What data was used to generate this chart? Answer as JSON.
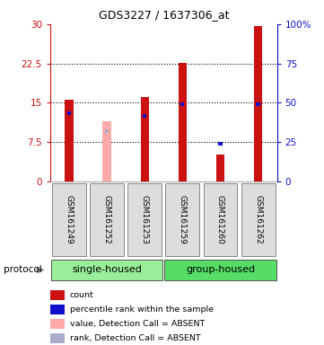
{
  "title": "GDS3227 / 1637306_at",
  "samples": [
    "GSM161249",
    "GSM161252",
    "GSM161253",
    "GSM161259",
    "GSM161260",
    "GSM161262"
  ],
  "red_values": [
    15.6,
    0,
    16.0,
    22.6,
    5.0,
    29.7
  ],
  "blue_values": [
    13.0,
    0,
    12.5,
    14.7,
    7.2,
    14.7
  ],
  "pink_bar_values": [
    0,
    11.5,
    0,
    0,
    0,
    0
  ],
  "light_blue_values": [
    0,
    9.5,
    0,
    0,
    0,
    0
  ],
  "absent_samples": [
    1
  ],
  "ylim_left": [
    0,
    30
  ],
  "ylim_right": [
    0,
    100
  ],
  "yticks_left": [
    0,
    7.5,
    15,
    22.5,
    30
  ],
  "yticks_right": [
    0,
    25,
    50,
    75,
    100
  ],
  "ytick_labels_left": [
    "0",
    "7.5",
    "15",
    "22.5",
    "30"
  ],
  "ytick_labels_right": [
    "0",
    "25",
    "50",
    "75",
    "100%"
  ],
  "dotted_lines": [
    7.5,
    15,
    22.5
  ],
  "red_color": "#cc1111",
  "blue_color": "#1111cc",
  "pink_color": "#ffaaaa",
  "light_blue_color": "#aaaacc",
  "left_axis_color": "#cc1111",
  "right_axis_color": "#1111cc",
  "single_housed_color": "#99ee99",
  "group_housed_color": "#55dd66",
  "sample_box_color": "#dddddd",
  "legend_items": [
    {
      "label": "count",
      "color": "#cc1111"
    },
    {
      "label": "percentile rank within the sample",
      "color": "#1111cc"
    },
    {
      "label": "value, Detection Call = ABSENT",
      "color": "#ffaaaa"
    },
    {
      "label": "rank, Detection Call = ABSENT",
      "color": "#aaaacc"
    }
  ],
  "group_regions": [
    {
      "label": "single-housed",
      "start": 0,
      "end": 2,
      "color": "#99ee99"
    },
    {
      "label": "group-housed",
      "start": 3,
      "end": 5,
      "color": "#55dd66"
    }
  ]
}
